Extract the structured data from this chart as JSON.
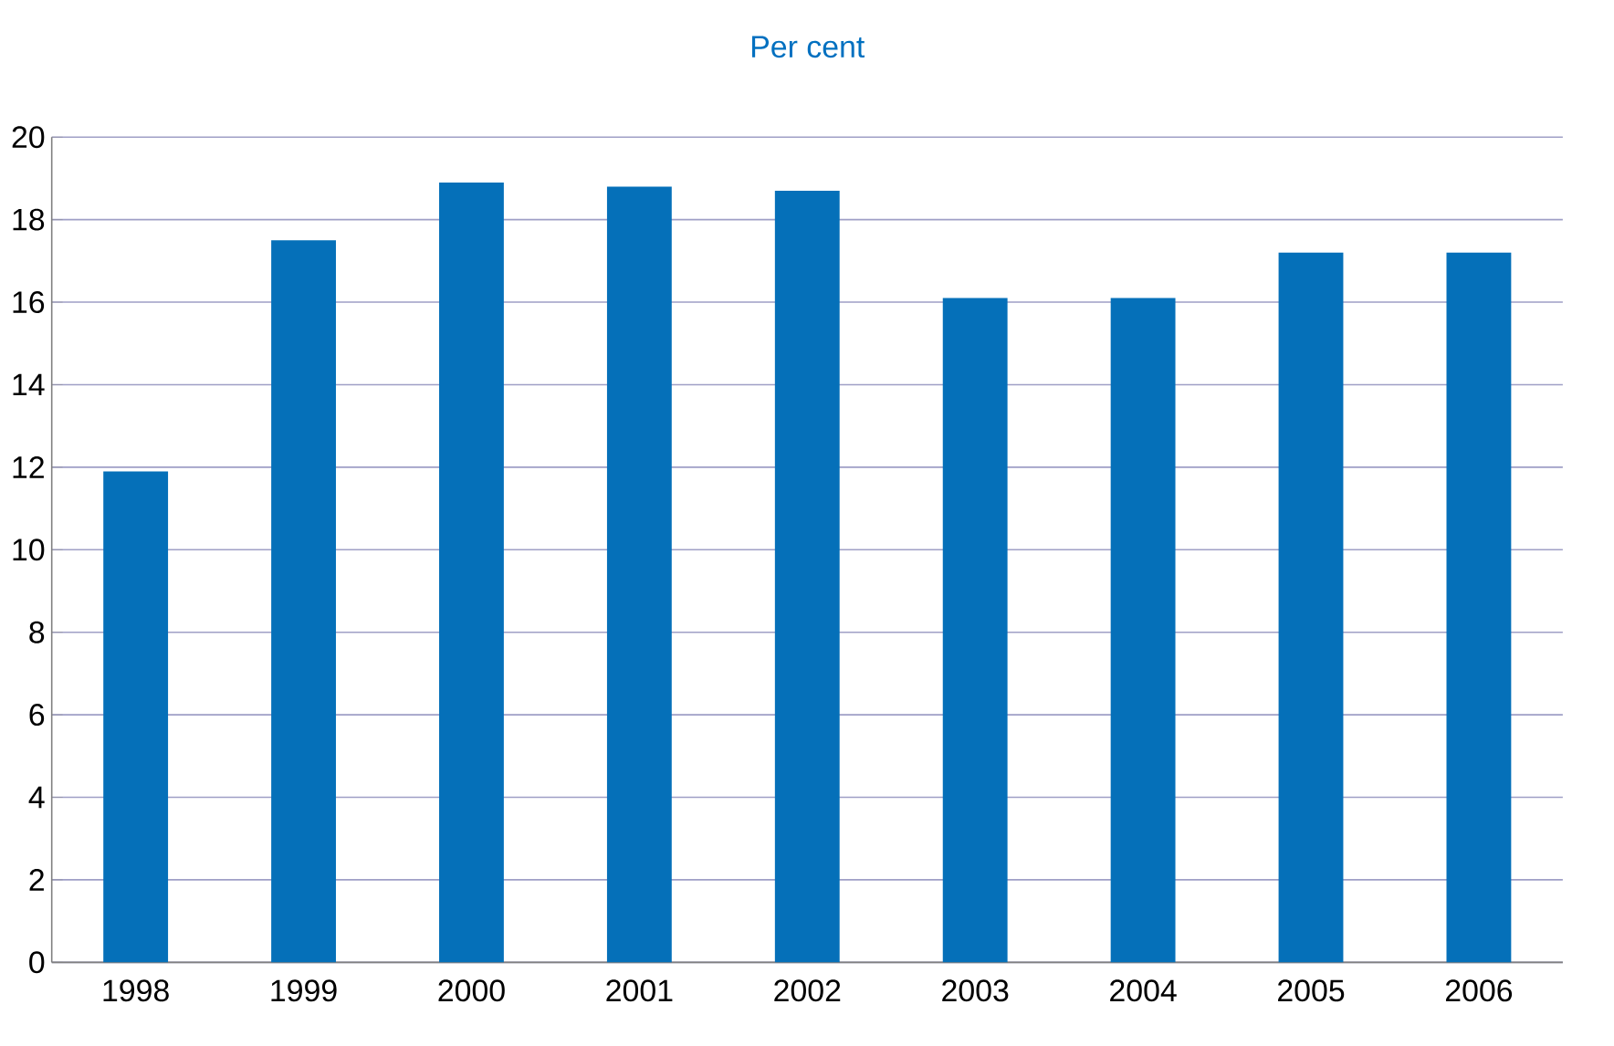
{
  "chart_data": {
    "type": "bar",
    "title": "Per cent",
    "categories": [
      "1998",
      "1999",
      "2000",
      "2001",
      "2002",
      "2003",
      "2004",
      "2005",
      "2006"
    ],
    "values": [
      11.9,
      17.5,
      18.9,
      18.8,
      18.7,
      16.1,
      16.1,
      17.2,
      17.2
    ],
    "color": "#0570b9",
    "ylim": [
      0,
      20
    ],
    "yticks": [
      0,
      2,
      4,
      6,
      8,
      10,
      12,
      14,
      16,
      18,
      20
    ],
    "grid": "y"
  }
}
